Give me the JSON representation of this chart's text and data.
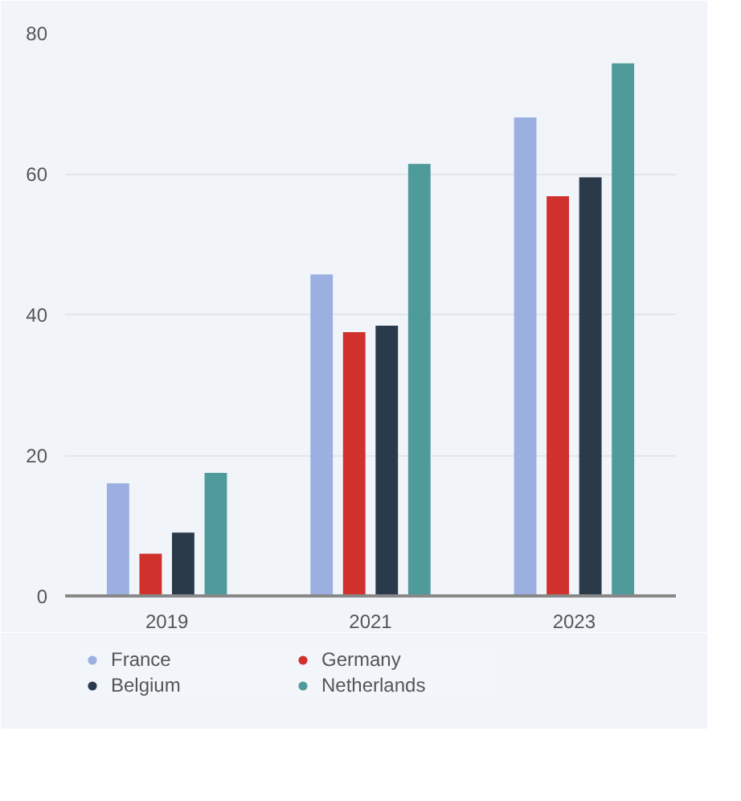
{
  "chart_data": {
    "type": "bar",
    "categories": [
      "2019",
      "2021",
      "2023"
    ],
    "series": [
      {
        "name": "France",
        "color": "#9bb0e0",
        "values": [
          16,
          45.7,
          68
        ]
      },
      {
        "name": "Germany",
        "color": "#d0312d",
        "values": [
          6,
          37.5,
          56.8
        ]
      },
      {
        "name": "Belgium",
        "color": "#2b3a4a",
        "values": [
          9,
          38.4,
          59.5
        ]
      },
      {
        "name": "Netherlands",
        "color": "#4f9b9b",
        "values": [
          17.5,
          61.4,
          75.7
        ]
      }
    ],
    "ylim": [
      0,
      80
    ],
    "yticks": [
      0,
      20,
      40,
      60,
      80
    ],
    "grid": "y",
    "legend": "bottom"
  }
}
